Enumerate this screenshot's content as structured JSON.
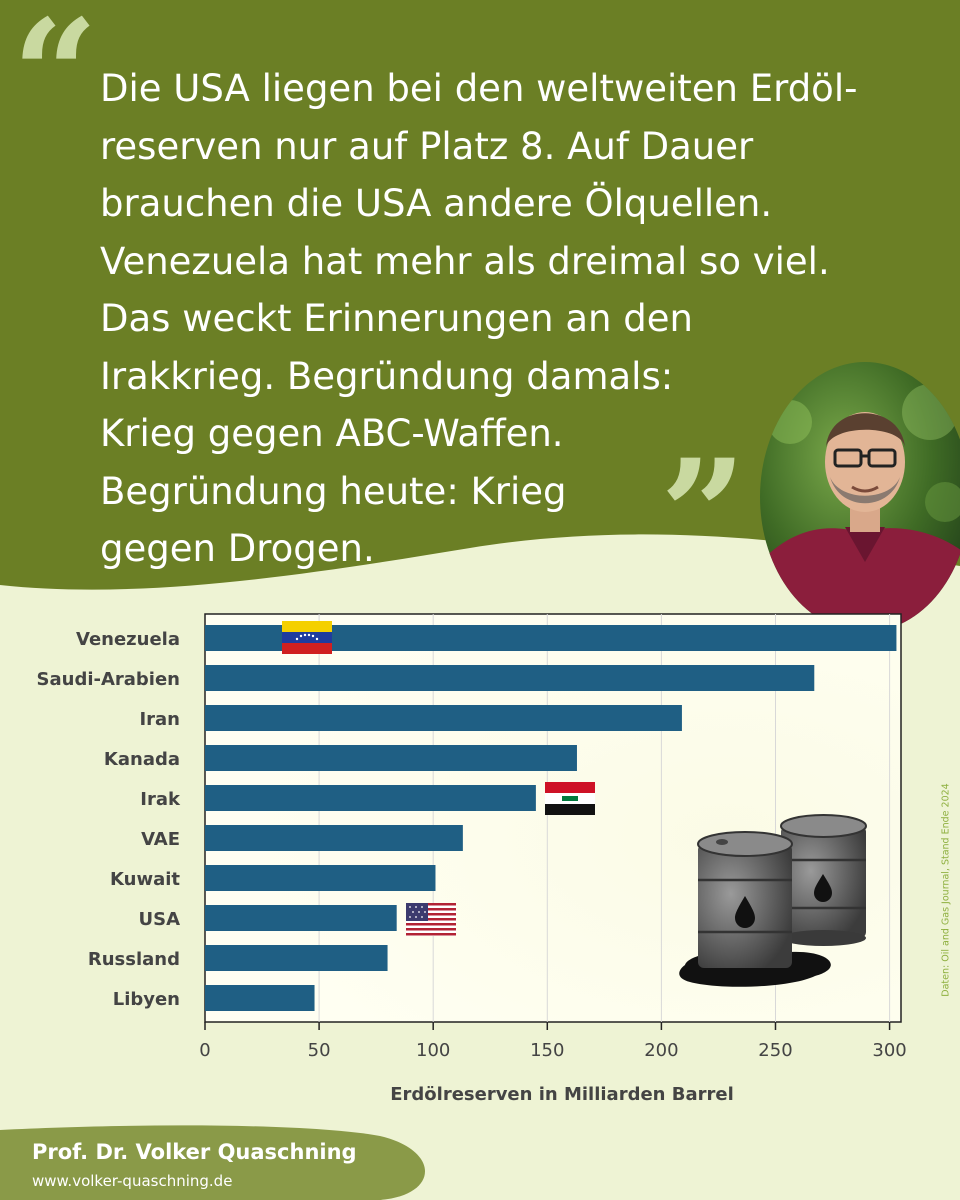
{
  "quote": {
    "text": "Die USA liegen bei den weltweiten Erdöl-\nreserven nur auf Platz 8. Auf Dauer\nbrauchen die USA andere Ölquellen.\nVenezuela hat mehr als dreimal so viel.\nDas weckt Erinnerungen an den\nIrakkrieg. Begründung damals:\nKrieg gegen ABC-Waffen.\nBegründung heute: Krieg\ngegen Drogen.",
    "open_mark": "“",
    "close_mark": "”"
  },
  "colors": {
    "header_bg": "#6b7f25",
    "page_bg": "#eef3d4",
    "bar": "#1f5f84",
    "quote_marks": "#c9d9a0",
    "footer_bg": "#8a9a48",
    "source_text": "#8fb040"
  },
  "icons": [
    "portrait-photo",
    "flag-venezuela",
    "flag-iraq",
    "flag-usa",
    "oil-barrels-illustration"
  ],
  "chart_data": {
    "type": "bar",
    "orientation": "horizontal",
    "categories": [
      "Venezuela",
      "Saudi-Arabien",
      "Iran",
      "Kanada",
      "Irak",
      "VAE",
      "Kuwait",
      "USA",
      "Russland",
      "Libyen"
    ],
    "values": [
      303,
      267,
      209,
      163,
      145,
      113,
      101,
      84,
      80,
      48
    ],
    "xlabel": "Erdölreserven in Milliarden Barrel",
    "xlim": [
      0,
      305
    ],
    "xticks": [
      0,
      50,
      100,
      150,
      200,
      250,
      300
    ],
    "grid": true,
    "flags": {
      "Venezuela": "venezuela",
      "Irak": "iraq",
      "USA": "usa"
    }
  },
  "source": "Daten: Oil and Gas Journal, Stand Ende 2024",
  "footer": {
    "name": "Prof. Dr. Volker Quaschning",
    "website": "www.volker-quaschning.de"
  }
}
